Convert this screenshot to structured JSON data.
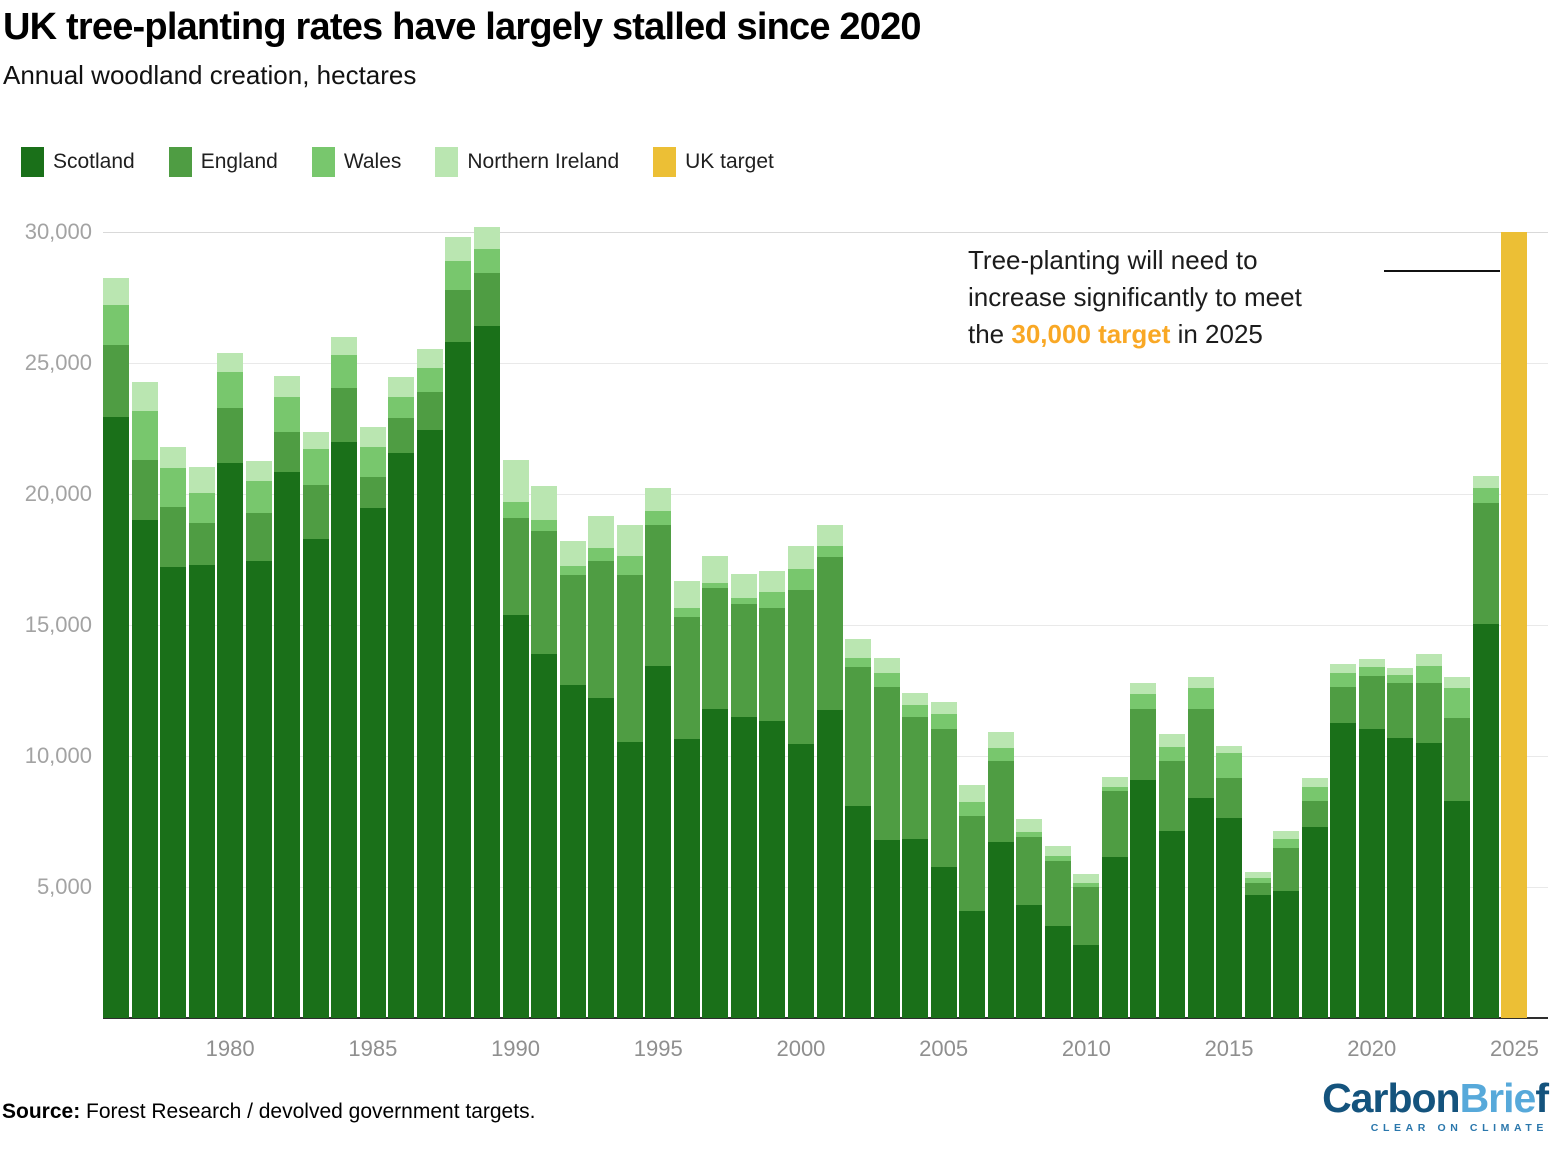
{
  "header": {
    "title": "UK tree-planting rates have largely stalled since 2020",
    "subtitle": "Annual woodland creation, hectares"
  },
  "legend": [
    {
      "label": "Scotland",
      "color": "#1a7019"
    },
    {
      "label": "England",
      "color": "#4f9d43"
    },
    {
      "label": "Wales",
      "color": "#78c76d"
    },
    {
      "label": "Northern Ireland",
      "color": "#bae6b1"
    },
    {
      "label": "UK target",
      "color": "#ecbf35"
    }
  ],
  "annotation": {
    "line1": "Tree-planting will need to",
    "line2": "increase significantly to meet",
    "line3_prefix": "the ",
    "line3_highlight": "30,000 target",
    "line3_suffix": " in 2025",
    "highlight_color": "#f9a825"
  },
  "footer": {
    "source_label": "Source:",
    "source_text": " Forest Research / devolved government targets.",
    "logo_dark": "Carbon",
    "logo_light": "Brie",
    "logo_dark2": "f",
    "logo_tagline": "CLEAR ON CLIMATE",
    "logo_dark_color": "#14537d",
    "logo_light_color": "#57a9da",
    "logo_tag_color": "#2a77ac"
  },
  "chart_data": {
    "type": "bar",
    "stacked": true,
    "title": "Annual woodland creation, hectares",
    "unit": "hectares",
    "ylim": [
      0,
      30000
    ],
    "yticks": [
      5000,
      10000,
      15000,
      20000,
      25000,
      30000
    ],
    "ytick_labels": [
      "5,000",
      "10,000",
      "15,000",
      "20,000",
      "25,000",
      "30,000"
    ],
    "xticks": [
      1980,
      1985,
      1990,
      1995,
      2000,
      2005,
      2010,
      2015,
      2020,
      2025
    ],
    "grid": true,
    "legend_position": "top",
    "years": [
      1976,
      1977,
      1978,
      1979,
      1980,
      1981,
      1982,
      1983,
      1984,
      1985,
      1986,
      1987,
      1988,
      1989,
      1990,
      1991,
      1992,
      1993,
      1994,
      1995,
      1996,
      1997,
      1998,
      1999,
      2000,
      2001,
      2002,
      2003,
      2004,
      2005,
      2006,
      2007,
      2008,
      2009,
      2010,
      2011,
      2012,
      2013,
      2014,
      2015,
      2016,
      2017,
      2018,
      2019,
      2020,
      2021,
      2022,
      2023,
      2024
    ],
    "series": [
      {
        "name": "Scotland",
        "color": "#1a7019",
        "values": [
          22950,
          19000,
          17200,
          17300,
          21200,
          17450,
          20850,
          18300,
          22000,
          19450,
          21550,
          22450,
          25800,
          26400,
          15400,
          13900,
          12700,
          12200,
          10550,
          13450,
          10650,
          11800,
          11500,
          11350,
          10450,
          11750,
          8100,
          6800,
          6850,
          5750,
          4100,
          6700,
          4300,
          3500,
          2800,
          6150,
          9100,
          7150,
          8400,
          7650,
          4700,
          4850,
          7300,
          11250,
          11050,
          10700,
          10500,
          8300,
          15050
        ]
      },
      {
        "name": "England",
        "color": "#4f9d43",
        "values": [
          2730,
          2280,
          2300,
          1600,
          2100,
          1820,
          1500,
          2050,
          2050,
          1200,
          1350,
          1450,
          2000,
          2050,
          3700,
          4700,
          4200,
          5250,
          6350,
          5350,
          4650,
          4600,
          4300,
          4300,
          5900,
          5850,
          5300,
          5850,
          4650,
          5300,
          3600,
          3100,
          2600,
          2500,
          2200,
          2500,
          2700,
          2650,
          3400,
          1500,
          450,
          1650,
          1000,
          1400,
          2000,
          2100,
          2300,
          3150,
          4600
        ]
      },
      {
        "name": "Wales",
        "color": "#78c76d",
        "values": [
          1550,
          1900,
          1500,
          1150,
          1350,
          1230,
          1350,
          1350,
          1250,
          1150,
          800,
          900,
          1100,
          900,
          600,
          400,
          350,
          480,
          750,
          550,
          350,
          200,
          230,
          600,
          800,
          400,
          350,
          500,
          450,
          550,
          550,
          500,
          200,
          200,
          150,
          150,
          550,
          550,
          800,
          950,
          180,
          330,
          500,
          520,
          350,
          290,
          650,
          1150,
          570
        ]
      },
      {
        "name": "Northern Ireland",
        "color": "#bae6b1",
        "values": [
          1020,
          1080,
          800,
          1000,
          750,
          760,
          800,
          650,
          700,
          750,
          750,
          750,
          900,
          850,
          1600,
          1300,
          950,
          1250,
          1150,
          880,
          1050,
          1050,
          900,
          800,
          850,
          800,
          700,
          580,
          450,
          450,
          650,
          600,
          500,
          350,
          350,
          400,
          450,
          500,
          400,
          300,
          250,
          300,
          350,
          350,
          300,
          260,
          450,
          400,
          450
        ]
      }
    ],
    "target": {
      "name": "UK target",
      "year": 2025,
      "value": 30000,
      "color": "#ecbf35"
    }
  }
}
